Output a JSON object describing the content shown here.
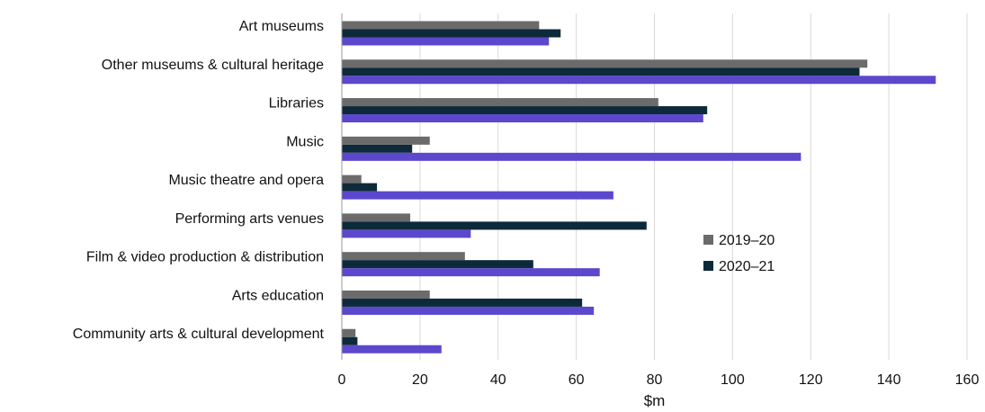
{
  "chart_data": {
    "type": "bar",
    "orientation": "horizontal",
    "categories": [
      "Art museums",
      "Other museums & cultural heritage",
      "Libraries",
      "Music",
      "Music theatre and opera",
      "Performing arts venues",
      "Film & video production & distribution",
      "Arts education",
      "Community arts & cultural development"
    ],
    "series": [
      {
        "name": "2019–20",
        "color": "#6b6b6b",
        "values": [
          50.5,
          134.5,
          81,
          22.5,
          5,
          17.5,
          31.5,
          22.5,
          3.5
        ]
      },
      {
        "name": "2020–21",
        "color": "#0d2a3a",
        "values": [
          56,
          132.5,
          93.5,
          18,
          9,
          78,
          49,
          61.5,
          4
        ]
      },
      {
        "color": "#5b48cc",
        "values": [
          53,
          152,
          92.5,
          117.5,
          69.5,
          33,
          66,
          64.5,
          25.5
        ]
      }
    ],
    "xlabel": "$m",
    "xlim": [
      0,
      160
    ],
    "xticks": [
      "0",
      "20",
      "40",
      "60",
      "80",
      "100",
      "120",
      "140",
      "160"
    ],
    "grid": true,
    "legend_position": "center-right"
  }
}
